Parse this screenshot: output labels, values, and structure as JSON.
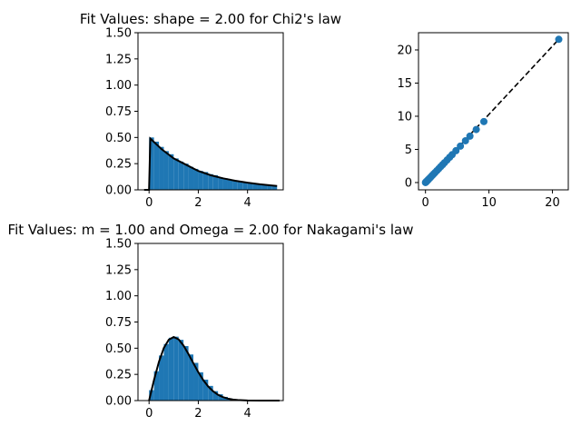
{
  "chart_data": [
    {
      "id": "hist_chi2",
      "type": "bar",
      "title": "Fit Values: shape = 2.00 for Chi2's law",
      "xlim": [
        -0.45,
        5.45
      ],
      "ylim": [
        0,
        1.5
      ],
      "xticks": [
        0,
        2,
        4
      ],
      "yticks": [
        0.0,
        0.25,
        0.5,
        0.75,
        1.0,
        1.25,
        1.5
      ],
      "ytick_labels": [
        "0.00",
        "0.25",
        "0.50",
        "0.75",
        "1.00",
        "1.25",
        "1.50"
      ],
      "bar_color": "#1f77b4",
      "fit_color": "#000000",
      "hist_x": [
        0.0,
        0.2,
        0.4,
        0.6,
        0.8,
        1.0,
        1.2,
        1.4,
        1.6,
        1.8,
        2.0,
        2.2,
        2.4,
        2.6,
        2.8,
        3.0,
        3.2,
        3.4,
        3.6,
        3.8,
        4.0,
        4.2,
        4.4,
        4.6,
        4.8,
        5.0
      ],
      "hist_values": [
        0.5,
        0.46,
        0.41,
        0.37,
        0.34,
        0.3,
        0.27,
        0.25,
        0.22,
        0.2,
        0.18,
        0.17,
        0.15,
        0.14,
        0.12,
        0.11,
        0.1,
        0.09,
        0.08,
        0.075,
        0.065,
        0.06,
        0.055,
        0.05,
        0.045,
        0.04
      ],
      "fit_x": [
        -0.2,
        0.0,
        0.05,
        0.5,
        1.0,
        1.5,
        2.0,
        2.5,
        3.0,
        3.5,
        4.0,
        4.5,
        5.0,
        5.2
      ],
      "fit_y": [
        0.0,
        0.0,
        0.49,
        0.39,
        0.3,
        0.24,
        0.18,
        0.14,
        0.11,
        0.087,
        0.068,
        0.053,
        0.041,
        0.037
      ]
    },
    {
      "id": "qq_plot",
      "type": "scatter",
      "xlim": [
        -1.1,
        22.5
      ],
      "ylim": [
        -1.1,
        22.6
      ],
      "xticks": [
        0,
        10,
        20
      ],
      "yticks": [
        0,
        5,
        10,
        15,
        20
      ],
      "point_color": "#1f77b4",
      "line_color": "#000000",
      "x": [
        0.0,
        0.05,
        0.1,
        0.2,
        0.3,
        0.4,
        0.5,
        0.7,
        0.9,
        1.1,
        1.3,
        1.5,
        1.8,
        2.1,
        2.4,
        2.7,
        3.0,
        3.4,
        3.8,
        4.2,
        4.8,
        5.5,
        6.3,
        7.0,
        8.0,
        9.2,
        21.0
      ],
      "y": [
        0.0,
        0.05,
        0.1,
        0.2,
        0.3,
        0.4,
        0.5,
        0.7,
        0.9,
        1.1,
        1.3,
        1.5,
        1.8,
        2.1,
        2.4,
        2.7,
        3.0,
        3.4,
        3.8,
        4.2,
        4.8,
        5.5,
        6.3,
        7.0,
        8.0,
        9.2,
        21.6
      ],
      "line": [
        [
          0.0,
          0.0
        ],
        [
          21.0,
          21.6
        ]
      ]
    },
    {
      "id": "hist_nakagami",
      "type": "bar",
      "title": "Fit Values: m = 1.00 and Omega = 2.00 for Nakagami's law",
      "xlim": [
        -0.45,
        5.45
      ],
      "ylim": [
        0,
        1.5
      ],
      "xticks": [
        0,
        2,
        4
      ],
      "yticks": [
        0.0,
        0.25,
        0.5,
        0.75,
        1.0,
        1.25,
        1.5
      ],
      "ytick_labels": [
        "0.00",
        "0.25",
        "0.50",
        "0.75",
        "1.00",
        "1.25",
        "1.50"
      ],
      "bar_color": "#1f77b4",
      "fit_color": "#000000",
      "hist_x": [
        0.0,
        0.2,
        0.4,
        0.6,
        0.8,
        1.0,
        1.2,
        1.4,
        1.6,
        1.8,
        2.0,
        2.2,
        2.4,
        2.6,
        2.8,
        3.0,
        3.2,
        3.4,
        3.6,
        3.8,
        4.0,
        4.2,
        4.4,
        4.6,
        4.8,
        5.0
      ],
      "hist_values": [
        0.1,
        0.28,
        0.43,
        0.54,
        0.6,
        0.61,
        0.58,
        0.52,
        0.44,
        0.36,
        0.27,
        0.2,
        0.14,
        0.09,
        0.06,
        0.035,
        0.02,
        0.012,
        0.006,
        0.003,
        0.002,
        0.001,
        0.0005,
        0.0003,
        0.0002,
        0.0001
      ],
      "fit_x": [
        0.0,
        0.2,
        0.4,
        0.6,
        0.8,
        1.0,
        1.2,
        1.4,
        1.6,
        1.8,
        2.0,
        2.2,
        2.4,
        2.6,
        2.8,
        3.0,
        3.2,
        3.4,
        3.6,
        3.8,
        4.0,
        4.5,
        5.0,
        5.3
      ],
      "fit_y": [
        0.0,
        0.196,
        0.369,
        0.502,
        0.581,
        0.607,
        0.584,
        0.525,
        0.444,
        0.356,
        0.271,
        0.196,
        0.135,
        0.089,
        0.055,
        0.033,
        0.019,
        0.01,
        0.005,
        0.003,
        0.001,
        0.0002,
        0.0,
        0.0
      ]
    }
  ]
}
